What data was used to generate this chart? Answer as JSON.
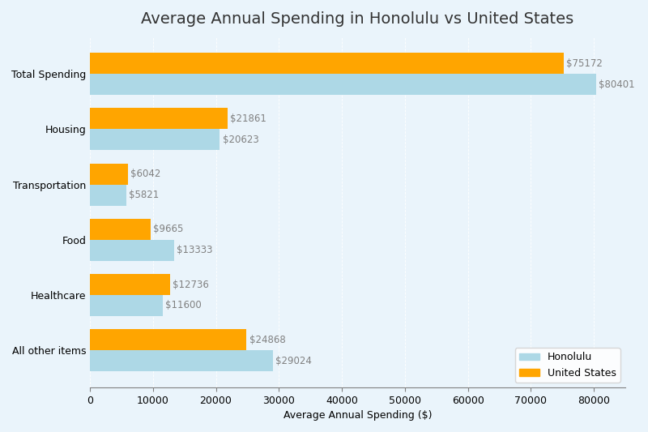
{
  "title": "Average Annual Spending in Honolulu vs United States",
  "xlabel": "Average Annual Spending ($)",
  "categories": [
    "Total Spending",
    "Housing",
    "Transportation",
    "Food",
    "Healthcare",
    "All other items"
  ],
  "honolulu_values": [
    80401,
    20623,
    5821,
    13333,
    11600,
    29024
  ],
  "us_values": [
    75172,
    21861,
    6042,
    9665,
    12736,
    24868
  ],
  "honolulu_color": "#ADD8E6",
  "us_color": "#FFA500",
  "bar_height": 0.38,
  "xlim": [
    0,
    85000
  ],
  "xticks": [
    0,
    10000,
    20000,
    30000,
    40000,
    50000,
    60000,
    70000,
    80000
  ],
  "xtick_labels": [
    "0",
    "10000",
    "20000",
    "30000",
    "40000",
    "50000",
    "60000",
    "70000",
    "80000"
  ],
  "background_color": "#EAF4FB",
  "legend_labels": [
    "Honolulu",
    "United States"
  ],
  "title_fontsize": 14,
  "label_fontsize": 9,
  "annotation_fontsize": 8.5
}
